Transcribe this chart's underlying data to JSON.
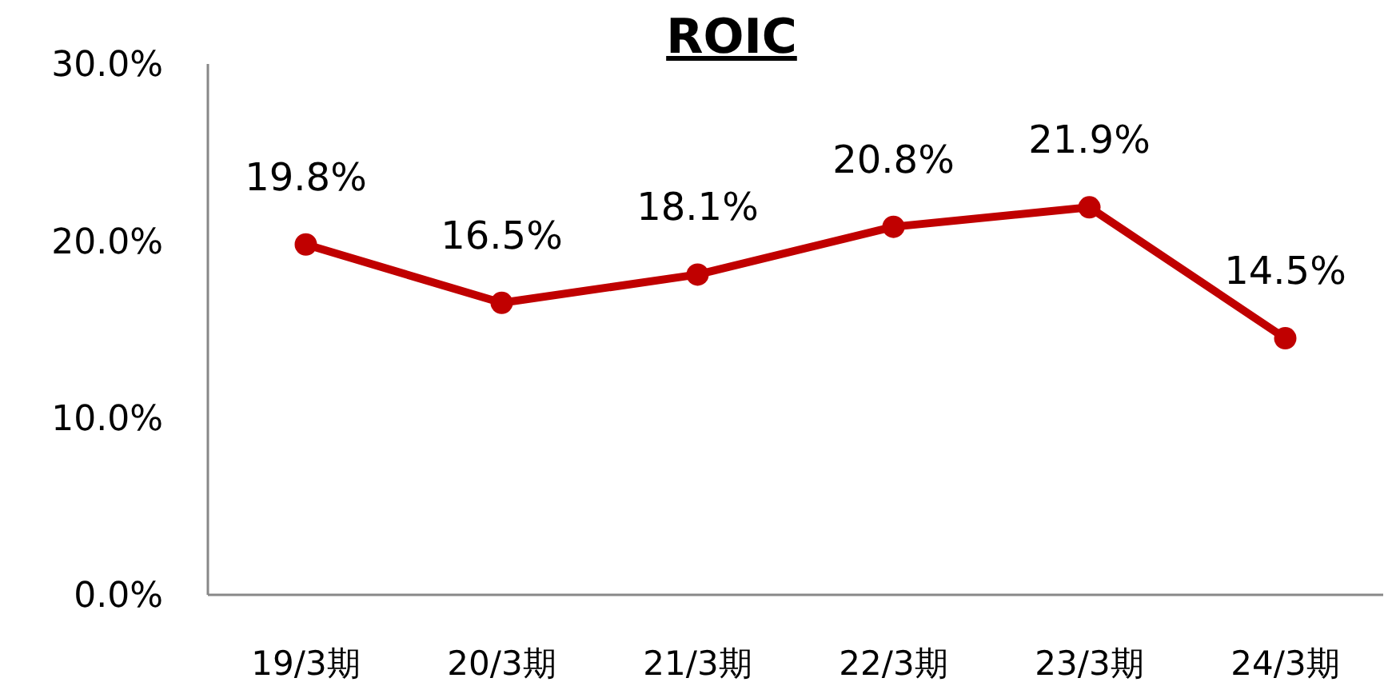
{
  "chart_data": {
    "type": "line",
    "title": "ROIC",
    "categories": [
      "19/3期",
      "20/3期",
      "21/3期",
      "22/3期",
      "23/3期",
      "24/3期"
    ],
    "series": [
      {
        "color": "#c00000",
        "values": [
          19.8,
          16.5,
          18.1,
          20.8,
          21.9,
          14.5
        ],
        "value_labels": [
          "19.8%",
          "16.5%",
          "18.1%",
          "20.8%",
          "21.9%",
          "14.5%"
        ]
      }
    ],
    "ylim": [
      0,
      30
    ],
    "yticks": [
      {
        "value": 0,
        "label": "0.0%"
      },
      {
        "value": 10,
        "label": "10.0%"
      },
      {
        "value": 20,
        "label": "20.0%"
      },
      {
        "value": 30,
        "label": "30.0%"
      }
    ],
    "grid": false,
    "marker": "circle",
    "line_style": "solid"
  }
}
